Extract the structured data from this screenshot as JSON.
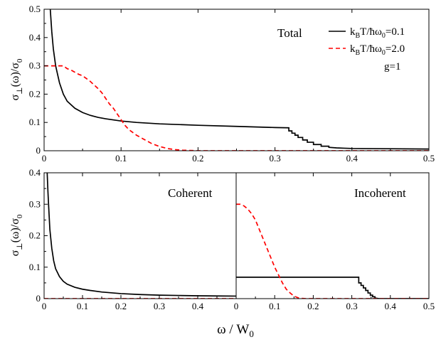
{
  "figure": {
    "xlabel_main": "ω / W",
    "xlabel_sub": "0"
  },
  "legend": {
    "entries": [
      {
        "pre": "k",
        "sub1": "B",
        "mid": "T/ħω",
        "sub2": "0",
        "post": "=0.1",
        "color": "#000000",
        "dash": false
      },
      {
        "pre": "k",
        "sub1": "B",
        "mid": "T/ħω",
        "sub2": "0",
        "post": "=2.0",
        "color": "#ff0000",
        "dash": true
      }
    ],
    "param": "g=1"
  },
  "colors": {
    "black": "#000000",
    "red": "#ff0000"
  },
  "chart_data": [
    {
      "type": "line",
      "title": "Total",
      "ylabel": {
        "main": "σ",
        "sub": "⊥",
        "rest": "(ω)/σ",
        "sub2": "0"
      },
      "xlim": [
        0,
        0.5
      ],
      "ylim": [
        0,
        0.5
      ],
      "xticks": [
        "0",
        "0.1",
        "0.2",
        "0.3",
        "0.4",
        "0.5"
      ],
      "xtick_values": [
        0,
        0.1,
        0.2,
        0.3,
        0.4,
        0.5
      ],
      "yticks": [
        "0",
        "0.1",
        "0.2",
        "0.3",
        "0.4",
        "0.5"
      ],
      "ytick_values": [
        0,
        0.1,
        0.2,
        0.3,
        0.4,
        0.5
      ],
      "series": [
        {
          "color": "#000000",
          "dash": false,
          "x": [
            0.008,
            0.01,
            0.012,
            0.015,
            0.02,
            0.025,
            0.03,
            0.04,
            0.05,
            0.06,
            0.07,
            0.08,
            0.1,
            0.12,
            0.15,
            0.2,
            0.25,
            0.3,
            0.318,
            0.318,
            0.322,
            0.322,
            0.326,
            0.326,
            0.33,
            0.33,
            0.336,
            0.336,
            0.342,
            0.342,
            0.35,
            0.35,
            0.36,
            0.36,
            0.37,
            0.37,
            0.38,
            0.39,
            0.4,
            0.45,
            0.5
          ],
          "y": [
            0.5,
            0.42,
            0.36,
            0.3,
            0.24,
            0.2,
            0.175,
            0.15,
            0.135,
            0.125,
            0.118,
            0.113,
            0.105,
            0.1,
            0.095,
            0.09,
            0.086,
            0.082,
            0.081,
            0.07,
            0.07,
            0.062,
            0.062,
            0.055,
            0.055,
            0.047,
            0.047,
            0.038,
            0.038,
            0.03,
            0.03,
            0.022,
            0.022,
            0.016,
            0.016,
            0.012,
            0.01,
            0.009,
            0.008,
            0.007,
            0.006
          ]
        },
        {
          "color": "#ff0000",
          "dash": true,
          "x": [
            0,
            0.015,
            0.025,
            0.03,
            0.035,
            0.045,
            0.05,
            0.06,
            0.07,
            0.075,
            0.08,
            0.085,
            0.09,
            0.095,
            0.1,
            0.105,
            0.11,
            0.12,
            0.13,
            0.14,
            0.15,
            0.16,
            0.17,
            0.18,
            0.19,
            0.2,
            0.3,
            0.4,
            0.5
          ],
          "y": [
            0.3,
            0.3,
            0.3,
            0.29,
            0.285,
            0.27,
            0.265,
            0.245,
            0.22,
            0.205,
            0.185,
            0.165,
            0.15,
            0.13,
            0.11,
            0.09,
            0.075,
            0.055,
            0.04,
            0.025,
            0.015,
            0.008,
            0.004,
            0.002,
            0.001,
            0,
            0,
            0,
            0
          ]
        }
      ]
    },
    {
      "type": "line",
      "title": "Coherent",
      "ylabel": {
        "main": "σ",
        "sub": "⊥",
        "rest": "(ω)/σ",
        "sub2": "0"
      },
      "xlim": [
        0,
        0.5
      ],
      "ylim": [
        0,
        0.4
      ],
      "xticks": [
        "0",
        "0.1",
        "0.2",
        "0.3",
        "0.4"
      ],
      "xtick_values": [
        0,
        0.1,
        0.2,
        0.3,
        0.4
      ],
      "yticks": [
        "0",
        "0.1",
        "0.2",
        "0.3",
        "0.4"
      ],
      "ytick_values": [
        0,
        0.1,
        0.2,
        0.3,
        0.4
      ],
      "series": [
        {
          "color": "#000000",
          "dash": false,
          "x": [
            0.008,
            0.01,
            0.012,
            0.015,
            0.02,
            0.025,
            0.03,
            0.04,
            0.05,
            0.06,
            0.08,
            0.1,
            0.12,
            0.15,
            0.2,
            0.25,
            0.3,
            0.35,
            0.4,
            0.45,
            0.5
          ],
          "y": [
            0.4,
            0.34,
            0.29,
            0.22,
            0.16,
            0.12,
            0.095,
            0.07,
            0.055,
            0.046,
            0.036,
            0.03,
            0.026,
            0.021,
            0.016,
            0.013,
            0.011,
            0.01,
            0.009,
            0.0085,
            0.008
          ]
        },
        {
          "color": "#ff0000",
          "dash": true,
          "x": [
            0,
            0.5
          ],
          "y": [
            0,
            0
          ]
        }
      ]
    },
    {
      "type": "line",
      "title": "Incoherent",
      "xlim": [
        0,
        0.5
      ],
      "ylim": [
        0,
        0.4
      ],
      "xticks": [
        "0",
        "0.1",
        "0.2",
        "0.3",
        "0.4",
        "0.5"
      ],
      "xtick_values": [
        0,
        0.1,
        0.2,
        0.3,
        0.4,
        0.5
      ],
      "series": [
        {
          "color": "#000000",
          "dash": false,
          "x": [
            0,
            0.318,
            0.318,
            0.324,
            0.324,
            0.33,
            0.33,
            0.336,
            0.336,
            0.342,
            0.342,
            0.348,
            0.348,
            0.354,
            0.354,
            0.36,
            0.36,
            0.37,
            0.5
          ],
          "y": [
            0.068,
            0.068,
            0.05,
            0.05,
            0.042,
            0.042,
            0.034,
            0.034,
            0.026,
            0.026,
            0.018,
            0.018,
            0.011,
            0.011,
            0.006,
            0.006,
            0.002,
            0,
            0
          ]
        },
        {
          "color": "#ff0000",
          "dash": true,
          "x": [
            0,
            0.01,
            0.02,
            0.03,
            0.04,
            0.05,
            0.06,
            0.07,
            0.08,
            0.09,
            0.1,
            0.11,
            0.12,
            0.13,
            0.14,
            0.15,
            0.16,
            0.17,
            0.18,
            0.2,
            0.3,
            0.4,
            0.5
          ],
          "y": [
            0.3,
            0.3,
            0.295,
            0.285,
            0.27,
            0.25,
            0.22,
            0.19,
            0.16,
            0.13,
            0.1,
            0.075,
            0.05,
            0.03,
            0.018,
            0.008,
            0.003,
            0.001,
            0,
            0,
            0,
            0,
            0
          ]
        }
      ]
    }
  ]
}
